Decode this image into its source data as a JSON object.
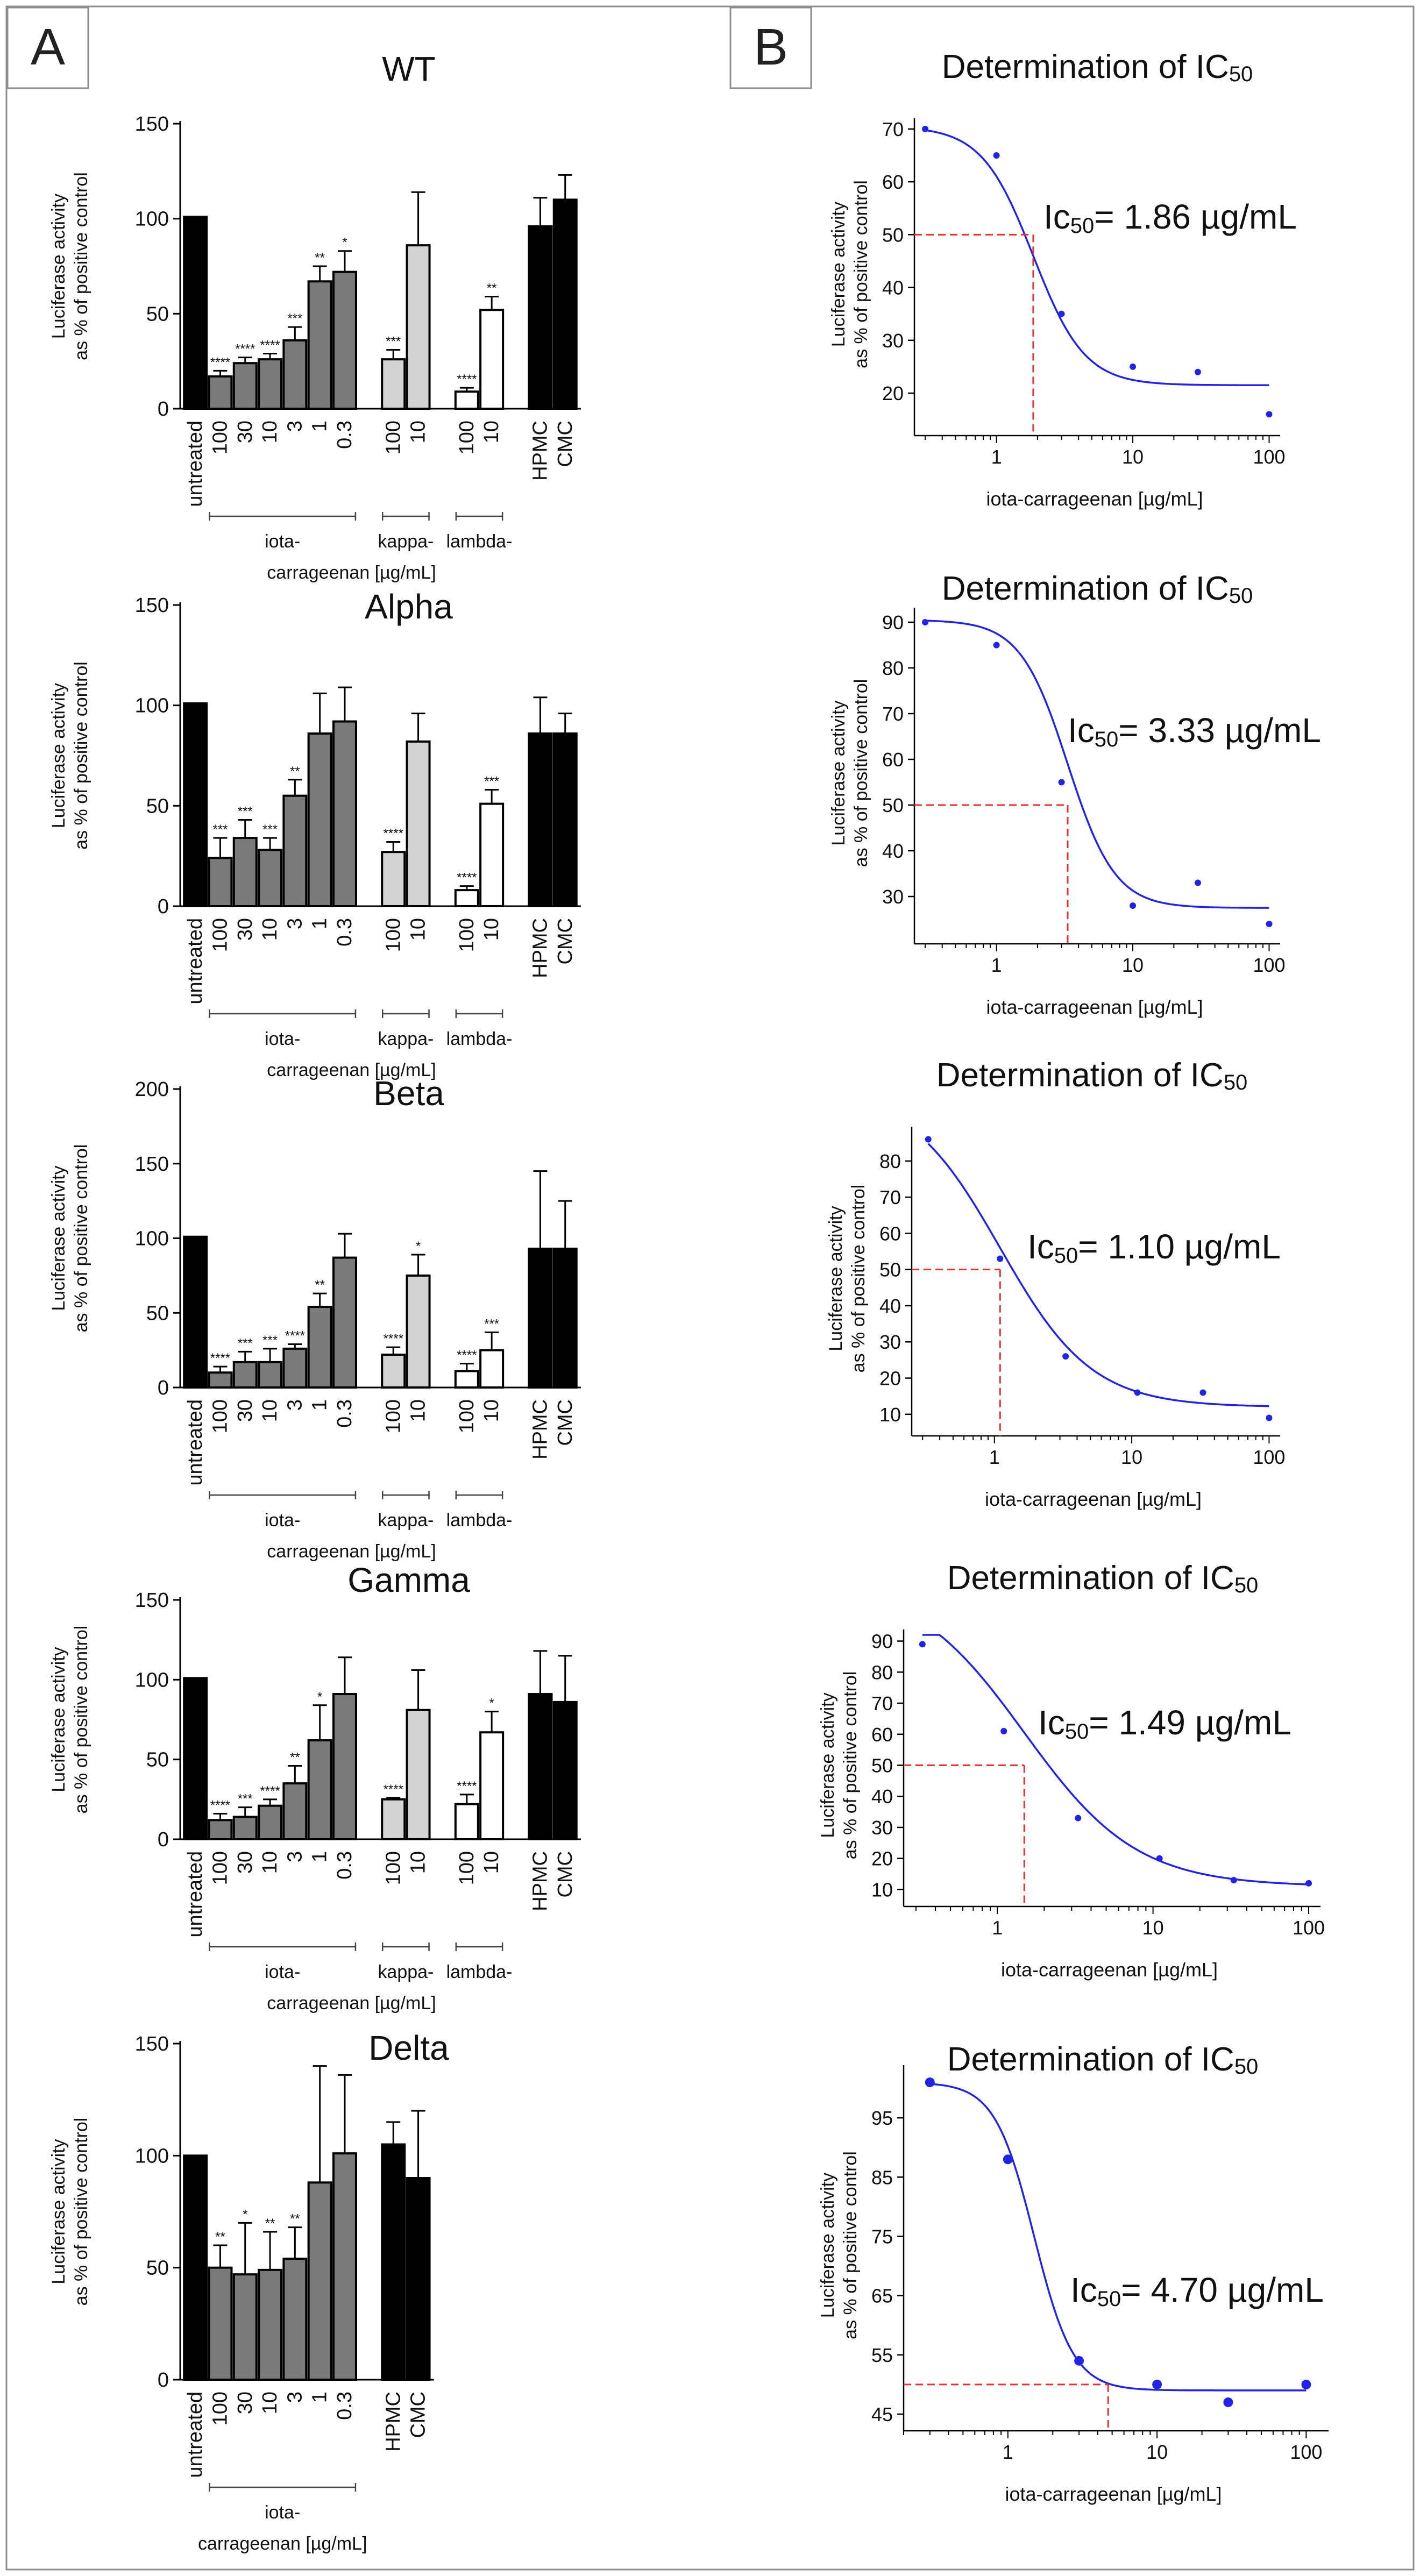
{
  "panel_labels": [
    "A",
    "B"
  ],
  "colors": {
    "untreated": "#000000",
    "iota": "#7a7a7a",
    "kappa": "#d3d3d3",
    "lambda": "#ffffff",
    "control": "#000000",
    "curve": "#2323e6",
    "ic50_line": "#e63232",
    "frame": "#8c8c8c"
  },
  "chart_data": [
    {
      "type": "bar",
      "title": "WT",
      "ylabel_line1": "Luciferase activity",
      "ylabel_line2": "as % of positive control",
      "ylim": [
        0,
        150
      ],
      "yticks": [
        0,
        50,
        100,
        150
      ],
      "categories": [
        "untreated",
        "100",
        "30",
        "10",
        "3",
        "1",
        "0.3",
        "100",
        "10",
        "100",
        "10",
        "HPMC",
        "CMC"
      ],
      "groups": [
        "untreated",
        "iota",
        "iota",
        "iota",
        "iota",
        "iota",
        "iota",
        "kappa",
        "kappa",
        "lambda",
        "lambda",
        "control",
        "control"
      ],
      "values": [
        101,
        17,
        24,
        26,
        36,
        67,
        72,
        26,
        86,
        9,
        52,
        96,
        110
      ],
      "errors": [
        0,
        3,
        3,
        3,
        7,
        8,
        11,
        5,
        28,
        2,
        7,
        15,
        13
      ],
      "significance": [
        "",
        "****",
        "****",
        "****",
        "***",
        "**",
        "*",
        "***",
        "",
        "****",
        "**",
        "",
        ""
      ],
      "group_labels": {
        "iota": "iota-",
        "kappa": "kappa-",
        "lambda": "lambda-",
        "unit": "carrageenan [µg/mL]"
      }
    },
    {
      "type": "bar",
      "title": "Alpha",
      "ylabel_line1": "Luciferase activity",
      "ylabel_line2": "as % of positive control",
      "ylim": [
        0,
        150
      ],
      "yticks": [
        0,
        50,
        100,
        150
      ],
      "categories": [
        "untreated",
        "100",
        "30",
        "10",
        "3",
        "1",
        "0.3",
        "100",
        "10",
        "100",
        "10",
        "HPMC",
        "CMC"
      ],
      "groups": [
        "untreated",
        "iota",
        "iota",
        "iota",
        "iota",
        "iota",
        "iota",
        "kappa",
        "kappa",
        "lambda",
        "lambda",
        "control",
        "control"
      ],
      "values": [
        101,
        24,
        34,
        28,
        55,
        86,
        92,
        27,
        82,
        8,
        51,
        86,
        86
      ],
      "errors": [
        0,
        10,
        9,
        6,
        8,
        20,
        17,
        5,
        14,
        2,
        7,
        18,
        10
      ],
      "significance": [
        "",
        "***",
        "***",
        "***",
        "**",
        "",
        "",
        "****",
        "",
        "****",
        "***",
        "",
        ""
      ],
      "group_labels": {
        "iota": "iota-",
        "kappa": "kappa-",
        "lambda": "lambda-",
        "unit": "carrageenan [µg/mL]"
      }
    },
    {
      "type": "bar",
      "title": "Beta",
      "ylabel_line1": "Luciferase activity",
      "ylabel_line2": "as % of positive control",
      "ylim": [
        0,
        200
      ],
      "yticks": [
        0,
        50,
        100,
        150,
        200
      ],
      "categories": [
        "untreated",
        "100",
        "30",
        "10",
        "3",
        "1",
        "0.3",
        "100",
        "10",
        "100",
        "10",
        "HPMC",
        "CMC"
      ],
      "groups": [
        "untreated",
        "iota",
        "iota",
        "iota",
        "iota",
        "iota",
        "iota",
        "kappa",
        "kappa",
        "lambda",
        "lambda",
        "control",
        "control"
      ],
      "values": [
        101,
        10,
        17,
        17,
        26,
        54,
        87,
        22,
        75,
        11,
        25,
        93,
        93
      ],
      "errors": [
        0,
        4,
        7,
        9,
        3,
        9,
        16,
        5,
        14,
        5,
        12,
        52,
        32
      ],
      "significance": [
        "",
        "****",
        "***",
        "***",
        "****",
        "**",
        "",
        "****",
        "*",
        "****",
        "***",
        "",
        ""
      ],
      "group_labels": {
        "iota": "iota-",
        "kappa": "kappa-",
        "lambda": "lambda-",
        "unit": "carrageenan [µg/mL]"
      }
    },
    {
      "type": "bar",
      "title": "Gamma",
      "ylabel_line1": "Luciferase activity",
      "ylabel_line2": "as % of positive control",
      "ylim": [
        0,
        150
      ],
      "yticks": [
        0,
        50,
        100,
        150
      ],
      "categories": [
        "untreated",
        "100",
        "30",
        "10",
        "3",
        "1",
        "0.3",
        "100",
        "10",
        "100",
        "10",
        "HPMC",
        "CMC"
      ],
      "groups": [
        "untreated",
        "iota",
        "iota",
        "iota",
        "iota",
        "iota",
        "iota",
        "kappa",
        "kappa",
        "lambda",
        "lambda",
        "control",
        "control"
      ],
      "values": [
        101,
        12,
        14,
        21,
        35,
        62,
        91,
        25,
        81,
        22,
        67,
        91,
        86
      ],
      "errors": [
        0,
        4,
        6,
        4,
        11,
        22,
        23,
        1,
        25,
        6,
        13,
        27,
        29
      ],
      "significance": [
        "",
        "****",
        "***",
        "****",
        "**",
        "*",
        "",
        "****",
        "",
        "****",
        "*",
        "",
        ""
      ],
      "group_labels": {
        "iota": "iota-",
        "kappa": "kappa-",
        "lambda": "lambda-",
        "unit": "carrageenan [µg/mL]"
      }
    },
    {
      "type": "bar",
      "title": "Delta",
      "ylabel_line1": "Luciferase activity",
      "ylabel_line2": "as % of positive control",
      "ylim": [
        0,
        150
      ],
      "yticks": [
        0,
        50,
        100,
        150
      ],
      "categories": [
        "untreated",
        "100",
        "30",
        "10",
        "3",
        "1",
        "0.3",
        "HPMC",
        "CMC"
      ],
      "groups": [
        "untreated",
        "iota",
        "iota",
        "iota",
        "iota",
        "iota",
        "iota",
        "control",
        "control"
      ],
      "values": [
        100,
        50,
        47,
        49,
        54,
        88,
        101,
        105,
        90
      ],
      "errors": [
        0,
        10,
        23,
        17,
        14,
        52,
        35,
        10,
        30
      ],
      "significance": [
        "",
        "**",
        "*",
        "**",
        "**",
        "",
        "",
        "",
        ""
      ],
      "group_labels": {
        "iota": "iota-",
        "unit": "carrageenan [µg/mL]"
      }
    },
    {
      "type": "scatter",
      "title_main": "Determination of IC",
      "title_sub": "50",
      "ylabel_line1": "Luciferase activity",
      "ylabel_line2": "as % of positive control",
      "xlabel": "iota-carrageenan [µg/mL]",
      "xscale": "log",
      "xlim": [
        0.25,
        110
      ],
      "xticks": [
        1,
        10,
        100
      ],
      "ylim": [
        14,
        71
      ],
      "yticks": [
        20,
        30,
        40,
        50,
        60,
        70
      ],
      "x": [
        0.3,
        1,
        3,
        10,
        30,
        100
      ],
      "y": [
        70,
        65,
        35,
        25,
        24,
        16
      ],
      "fit": {
        "top": 70.5,
        "bottom": 21.5,
        "ic50": 1.86,
        "hill": 2.3
      },
      "ic50_value": 1.86,
      "ic50_prefix": "Ic",
      "ic50_sub": "50",
      "ic50_text": "= 1.86 µg/mL"
    },
    {
      "type": "scatter",
      "title_main": "Determination of IC",
      "title_sub": "50",
      "ylabel_line1": "Luciferase activity",
      "ylabel_line2": "as % of positive control",
      "xlabel": "iota-carrageenan [µg/mL]",
      "xscale": "log",
      "xlim": [
        0.25,
        110
      ],
      "xticks": [
        1,
        10,
        100
      ],
      "ylim": [
        22,
        92
      ],
      "yticks": [
        30,
        40,
        50,
        60,
        70,
        80,
        90
      ],
      "x": [
        0.3,
        1,
        3,
        10,
        30,
        100
      ],
      "y": [
        90,
        85,
        55,
        28,
        33,
        24
      ],
      "fit": {
        "top": 90.5,
        "bottom": 27.5,
        "ic50": 3.33,
        "hill": 2.5
      },
      "ic50_value": 3.33,
      "ic50_prefix": "Ic",
      "ic50_sub": "50",
      "ic50_text": "= 3.33 µg/mL"
    },
    {
      "type": "scatter",
      "title_main": "Determination of IC",
      "title_sub": "50",
      "ylabel_line1": "Luciferase activity",
      "ylabel_line2": "as % of positive control",
      "xlabel": "iota-carrageenan [µg/mL]",
      "xscale": "log",
      "xlim": [
        0.25,
        110
      ],
      "xticks": [
        1,
        10,
        100
      ],
      "ylim": [
        7,
        88
      ],
      "yticks": [
        10,
        20,
        30,
        40,
        50,
        60,
        70,
        80
      ],
      "x": [
        0.33,
        1.1,
        3.3,
        11,
        33,
        100
      ],
      "y": [
        86,
        53,
        26,
        16,
        16,
        9
      ],
      "fit": {
        "top": 100,
        "bottom": 12,
        "ic50": 1.1,
        "hill": 1.3
      },
      "ic50_value": 1.1,
      "ic50_prefix": "Ic",
      "ic50_sub": "50",
      "ic50_text": "= 1.10 µg/mL"
    },
    {
      "type": "scatter",
      "title_main": "Determination of IC",
      "title_sub": "50",
      "ylabel_line1": "Luciferase activity",
      "ylabel_line2": "as % of positive control",
      "xlabel": "iota-carrageenan [µg/mL]",
      "xscale": "log",
      "xlim": [
        0.25,
        110
      ],
      "xticks": [
        1,
        10,
        100
      ],
      "ylim": [
        8,
        92
      ],
      "yticks": [
        10,
        20,
        30,
        40,
        50,
        60,
        70,
        80,
        90
      ],
      "x": [
        0.33,
        1.1,
        3.3,
        11,
        33,
        100
      ],
      "y": [
        89,
        61,
        33,
        20,
        13,
        12
      ],
      "fit": {
        "top": 110,
        "bottom": 11,
        "ic50": 1.49,
        "hill": 1.2
      },
      "ic50_value": 1.49,
      "ic50_prefix": "Ic",
      "ic50_sub": "50",
      "ic50_text": "= 1.49 µg/mL"
    },
    {
      "type": "scatter",
      "title_main": "Determination of IC",
      "title_sub": "50",
      "ylabel_line1": "Luciferase activity",
      "ylabel_line2": "as % of positive control",
      "xlabel": "iota-carrageenan [µg/mL]",
      "xscale": "log",
      "xlim": [
        0.2,
        130
      ],
      "xticks": [
        1,
        10,
        100
      ],
      "ylim": [
        44,
        103
      ],
      "yticks": [
        45,
        55,
        65,
        75,
        85,
        95
      ],
      "x": [
        0.3,
        1,
        3,
        10,
        30,
        100
      ],
      "y": [
        101,
        88,
        54,
        50,
        47,
        50
      ],
      "fit": {
        "top": 101,
        "bottom": 49,
        "ic50": 1.5,
        "hill": 3.3
      },
      "ic50_value": 4.7,
      "ic50_prefix": "Ic",
      "ic50_sub": "50",
      "ic50_text": "= 4.70 µg/mL"
    }
  ]
}
